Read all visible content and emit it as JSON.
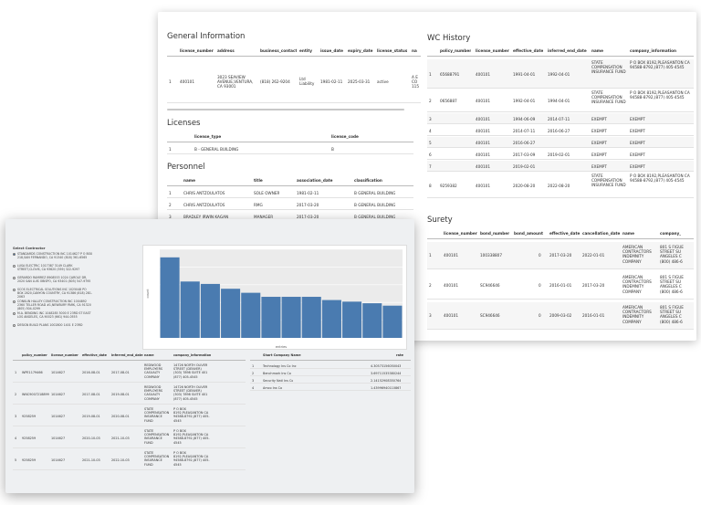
{
  "general_information": {
    "title": "General Information",
    "columns": [
      "license_number",
      "address",
      "business_contact",
      "entity",
      "issue_date",
      "expiry_date",
      "license_status",
      "na"
    ],
    "rows": [
      {
        "idx": "1",
        "license_number": "400101",
        "address": "3023 SEAVIEW AVENUE,VENTURA, CA 93001",
        "business_contact": "(818) 262-9204",
        "entity": "Ltd Liability",
        "issue_date": "1981-02-11",
        "expiry_date": "2025-03-31",
        "license_status": "active",
        "na": "A E CO 115"
      }
    ]
  },
  "licenses": {
    "title": "Licenses",
    "columns": [
      "license_type",
      "license_code"
    ],
    "rows": [
      {
        "idx": "1",
        "license_type": "B - GENERAL BUILDING",
        "license_code": "B"
      }
    ]
  },
  "personnel": {
    "title": "Personnel",
    "columns": [
      "name",
      "title",
      "association_date",
      "classification"
    ],
    "rows": [
      {
        "idx": "1",
        "name": "CHRIS ANTZOULATOS",
        "title": "SOLE OWNER",
        "association_date": "1981-02-11",
        "classification": "B GENERAL BUILDING"
      },
      {
        "idx": "2",
        "name": "CHRIS ANTZOULATOS",
        "title": "RMG",
        "association_date": "2017-03-20",
        "classification": "B GENERAL BUILDING"
      },
      {
        "idx": "3",
        "name": "BRADLEY IRWIN KAGAN",
        "title": "MANAGER",
        "association_date": "2017-03-20",
        "classification": "B GENERAL BUILDING"
      }
    ]
  },
  "wc_history": {
    "title": "WC History",
    "columns": [
      "policy_number",
      "license_number",
      "effective_date",
      "inferred_end_date",
      "name",
      "company_information"
    ],
    "rows": [
      {
        "idx": "1",
        "policy_number": "65688791",
        "license_number": "400101",
        "effective_date": "1991-04-01",
        "inferred_end_date": "1992-04-01",
        "name": "STATE COMPENSATION INSURANCE FUND",
        "company_information": "P O BOX 8192,PLEASANTON CA 94588-8792,(877) 405-4545"
      },
      {
        "idx": "2",
        "policy_number": "0656887",
        "license_number": "400101",
        "effective_date": "1992-04-01",
        "inferred_end_date": "1994-04-01",
        "name": "STATE COMPENSATION INSURANCE FUND",
        "company_information": "P O BOX 8192,PLEASANTON CA 94588-8792,(877) 405-4545"
      },
      {
        "idx": "3",
        "policy_number": "",
        "license_number": "400101",
        "effective_date": "1994-06-09",
        "inferred_end_date": "2014-07-11",
        "name": "EXEMPT",
        "company_information": "EXEMPT"
      },
      {
        "idx": "4",
        "policy_number": "",
        "license_number": "400101",
        "effective_date": "2014-07-11",
        "inferred_end_date": "2016-06-27",
        "name": "EXEMPT",
        "company_information": "EXEMPT"
      },
      {
        "idx": "5",
        "policy_number": "",
        "license_number": "400101",
        "effective_date": "2016-06-27",
        "inferred_end_date": "",
        "name": "EXEMPT",
        "company_information": "EXEMPT"
      },
      {
        "idx": "6",
        "policy_number": "",
        "license_number": "400101",
        "effective_date": "2017-03-09",
        "inferred_end_date": "2019-02-01",
        "name": "EXEMPT",
        "company_information": "EXEMPT"
      },
      {
        "idx": "7",
        "policy_number": "",
        "license_number": "400101",
        "effective_date": "2019-02-01",
        "inferred_end_date": "",
        "name": "EXEMPT",
        "company_information": "EXEMPT"
      },
      {
        "idx": "8",
        "policy_number": "9259382",
        "license_number": "400101",
        "effective_date": "2020-08-20",
        "inferred_end_date": "2022-08-20",
        "name": "STATE COMPENSATION INSURANCE FUND",
        "company_information": "P O BOX 8192,PLEASANTON CA 94588-8792,(877) 405-4545"
      }
    ]
  },
  "surety": {
    "title": "Surety",
    "columns": [
      "license_number",
      "bond_number",
      "bond_amount",
      "effective_date",
      "cancellation_date",
      "name",
      "company_"
    ],
    "rows": [
      {
        "idx": "1",
        "license_number": "400101",
        "bond_number": "100338807",
        "bond_amount": "0",
        "effective_date": "2017-03-20",
        "cancellation_date": "2022-01-01",
        "name": "AMERICAN CONTRACTORS INDEMNITY COMPANY",
        "company_": "801 S FIGUE STREET SU ANGELES C (800) 486-6"
      },
      {
        "idx": "2",
        "license_number": "400101",
        "bond_number": "SC946646",
        "bond_amount": "0",
        "effective_date": "2016-01-01",
        "cancellation_date": "2017-03-20",
        "name": "AMERICAN CONTRACTORS INDEMNITY COMPANY",
        "company_": "801 S FIGUE STREET SU ANGELES C (800) 486-6"
      },
      {
        "idx": "3",
        "license_number": "400101",
        "bond_number": "SC946646",
        "bond_amount": "0",
        "effective_date": "2009-03-02",
        "cancellation_date": "2016-01-01",
        "name": "AMERICAN CONTRACTORS INDEMNITY COMPANY",
        "company_": "801 S FIGUE STREET SU ANGELES C (800) 486-6"
      }
    ]
  },
  "front": {
    "select_label": "Select Contractor",
    "options": [
      {
        "label": "STANDARDS CONSTRUCTION INC 1014627 P O BOX 218,SAN FERNANDO, CA 91340 (818) 361-6565",
        "selected": true
      },
      {
        "label": "LUSA ELECTRIC 1017387 3149 CLARK STREET,CLOVIS, CA 93620 (559) 322-9297",
        "selected": false
      },
      {
        "label": "GERARDO RAMIREZ 8908553 1024 CAROLE DR, 2020 SAN LUIS OBISPO, CA 93401 (805) 547-9795",
        "selected": false
      },
      {
        "label": "SCOS ELECTRICAL SOLUTIONS INC 1025048 PO BOX 2820,CANYON COUNTRY, CA 91386 (818) 281-2063",
        "selected": false
      },
      {
        "label": "CONKLIN HALLEY CONSTRUCTION INC 1004892 2360 TELLER ROAD #1,NEWBURY PARK, CA 91320 (805) 504-0299",
        "selected": false
      },
      {
        "label": "M.A. BENDING INC 1048285 3000 E 23RD ST EAST LOS ANGELES, CA 90023 (661) 944-0555",
        "selected": false
      },
      {
        "label": "DESIGN BUILD PLANS 1002800 1401 E 23RD",
        "selected": false
      }
    ],
    "chart_data": {
      "type": "bar",
      "categories": [
        "",
        "",
        "",
        "",
        "",
        "",
        "",
        "",
        "",
        "",
        "",
        ""
      ],
      "values": [
        100,
        70,
        67,
        61,
        56,
        51,
        51,
        51,
        47,
        45,
        43,
        40
      ],
      "title": "",
      "xlabel": "entries",
      "ylabel": "count",
      "ylim": [
        0,
        110
      ],
      "color": "#4a7bb0"
    },
    "wc_table": {
      "columns": [
        "policy_number",
        "license_number",
        "effective_date",
        "inferred_end_date",
        "name",
        "company_information"
      ],
      "rows": [
        {
          "idx": "1",
          "policy_number": "WPE1179466",
          "license_number": "1014627",
          "effective_date": "2016-08-01",
          "inferred_end_date": "2017-08-01",
          "name": "REDWOOD EMPLOYERS CASUALTY COMPANY",
          "company_information": "14726 NORTH OLIVER STREET (DENVER) (303) 7898 SUITE 401 (877) 405-4545"
        },
        {
          "idx": "2",
          "policy_number": "WNC9007218899",
          "license_number": "1014627",
          "effective_date": "2017-08-01",
          "inferred_end_date": "2019-08-01",
          "name": "REDWOOD EMPLOYERS CASUALTY COMPANY",
          "company_information": "14726 NORTH OLIVER STREET (DENVER) (303) 7898 SUITE 401 (877) 405-4545"
        },
        {
          "idx": "3",
          "policy_number": "9258259",
          "license_number": "1014627",
          "effective_date": "2019-08-01",
          "inferred_end_date": "2020-08-01",
          "name": "STATE COMPENSATION INSURANCE FUND",
          "company_information": "P O BOX 8192,PLEASANTON CA 94588-8792,(877) 405-4545"
        },
        {
          "idx": "4",
          "policy_number": "9258259",
          "license_number": "1014627",
          "effective_date": "2020-10-03",
          "inferred_end_date": "2021-10-03",
          "name": "STATE COMPENSATION INSURANCE FUND",
          "company_information": "P O BOX 8192,PLEASANTON CA 94588-8792,(877) 405-4545"
        },
        {
          "idx": "5",
          "policy_number": "9258259",
          "license_number": "1014627",
          "effective_date": "2021-10-03",
          "inferred_end_date": "2022-10-03",
          "name": "STATE COMPENSATION INSURANCE FUND",
          "company_information": "P O BOX 8192,PLEASANTON CA 94588-8792,(877) 405-4545"
        }
      ]
    },
    "company_table": {
      "columns": [
        "Short Company Name",
        "rate"
      ],
      "rows": [
        {
          "idx": "1",
          "name": "Technology Ins Co Inc",
          "rate": "4.30573156050043"
        },
        {
          "idx": "2",
          "name": "Benchmark Ins Co",
          "rate": "3.69711535380244"
        },
        {
          "idx": "3",
          "name": "Security Natl Ins Co",
          "rate": "2.14152908350764"
        },
        {
          "idx": "4",
          "name": "Amco Ins Co",
          "rate": "1.43996940110867"
        }
      ]
    }
  }
}
